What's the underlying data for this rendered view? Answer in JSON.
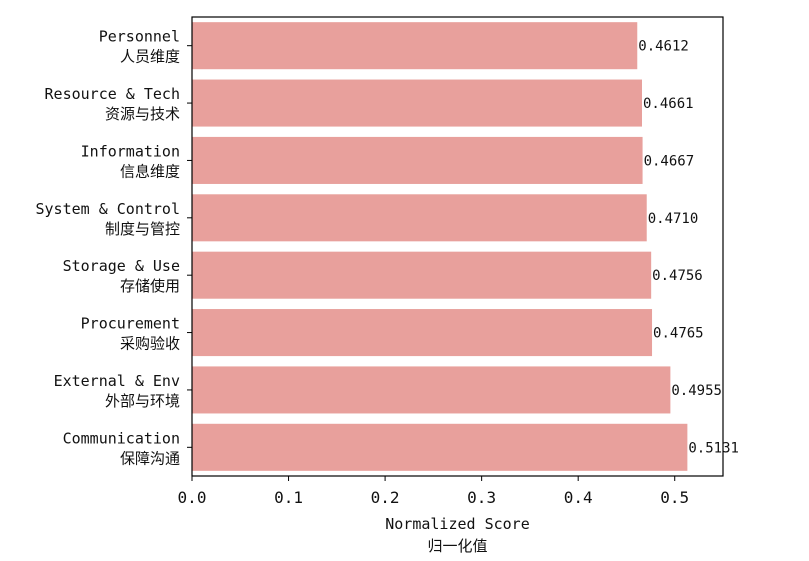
{
  "chart_data": {
    "type": "bar",
    "orientation": "horizontal",
    "categories": [
      {
        "en": "Personnel",
        "zh": "人员维度"
      },
      {
        "en": "Resource & Tech",
        "zh": "资源与技术"
      },
      {
        "en": "Information",
        "zh": "信息维度"
      },
      {
        "en": "System & Control",
        "zh": "制度与管控"
      },
      {
        "en": "Storage & Use",
        "zh": "存储使用"
      },
      {
        "en": "Procurement",
        "zh": "采购验收"
      },
      {
        "en": "External & Env",
        "zh": "外部与环境"
      },
      {
        "en": "Communication",
        "zh": "保障沟通"
      }
    ],
    "values": [
      0.4612,
      0.4661,
      0.4667,
      0.471,
      0.4756,
      0.4765,
      0.4955,
      0.5131
    ],
    "value_labels": [
      "0.4612",
      "0.4661",
      "0.4667",
      "0.4710",
      "0.4756",
      "0.4765",
      "0.4955",
      "0.5131"
    ],
    "xlabel": "Normalized Score",
    "xlabel_zh": "归一化值",
    "xlim": [
      0,
      0.55
    ],
    "xticks": [
      0.0,
      0.1,
      0.2,
      0.3,
      0.4,
      0.5
    ],
    "xtick_labels": [
      "0.0",
      "0.1",
      "0.2",
      "0.3",
      "0.4",
      "0.5"
    ],
    "bar_color": "#e8a09c",
    "grid": false,
    "legend": "none"
  }
}
